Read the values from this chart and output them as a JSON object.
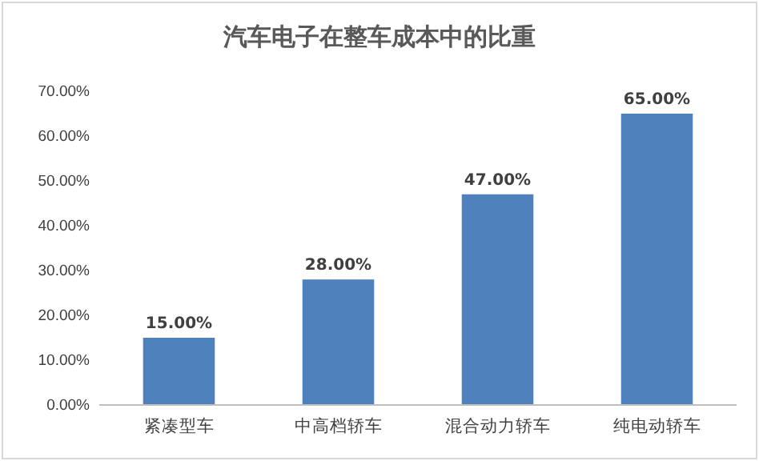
{
  "chart_data": {
    "type": "bar",
    "title": "汽车电子在整车成本中的比重",
    "categories": [
      "紧凑型车",
      "中高档轿车",
      "混合动力轿车",
      "纯电动轿车"
    ],
    "values": [
      15,
      28,
      47,
      65
    ],
    "color": "#4f81bd",
    "value_labels": [
      "15.00%",
      "28.00%",
      "47.00%",
      "65.00%"
    ],
    "ylim": [
      0,
      70
    ],
    "yticks": [
      {
        "value": 0,
        "label": "0.00%"
      },
      {
        "value": 10,
        "label": "10.00%"
      },
      {
        "value": 20,
        "label": "20.00%"
      },
      {
        "value": 30,
        "label": "30.00%"
      },
      {
        "value": 40,
        "label": "40.00%"
      },
      {
        "value": 50,
        "label": "50.00%"
      },
      {
        "value": 60,
        "label": "60.00%"
      },
      {
        "value": 70,
        "label": "70.00%"
      }
    ],
    "grid": false
  }
}
